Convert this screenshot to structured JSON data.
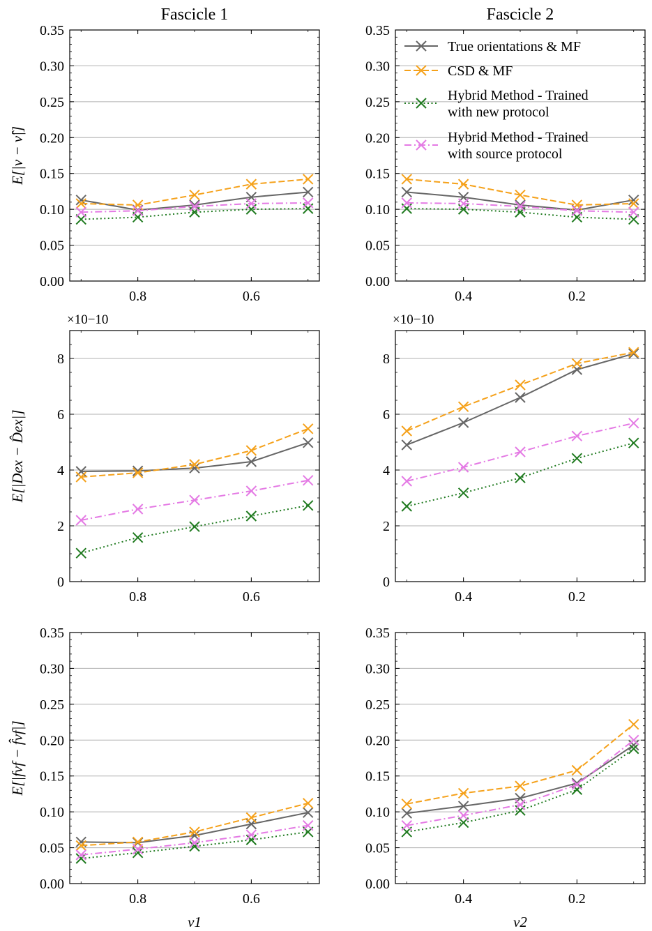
{
  "chart_data": {
    "type": "line",
    "column_titles": [
      "Fascicle 1",
      "Fascicle 2"
    ],
    "xlabels": [
      "ν1",
      "ν2"
    ],
    "legend": [
      {
        "name": "True orientations & MF",
        "color": "#666666",
        "dash": "solid"
      },
      {
        "name": "CSD & MF",
        "color": "#f5a11a",
        "dash": "dashed"
      },
      {
        "name": "Hybrid Method - Trained with new protocol",
        "color": "#1f7a1f",
        "dash": "dotted"
      },
      {
        "name": "Hybrid Method - Trained with source protocol",
        "color": "#e47ae4",
        "dash": "dashdot"
      }
    ],
    "legend_lines": [
      [
        "True orientations & MF"
      ],
      [
        "CSD & MF"
      ],
      [
        "Hybrid Method - Trained",
        "with new protocol"
      ],
      [
        "Hybrid Method - Trained",
        "with source protocol"
      ]
    ],
    "legend_location": "top-right of Fascicle 2 top panel",
    "panels": [
      {
        "id": "p11",
        "row": 0,
        "col": 0,
        "ylabel": "E[|ν − ν̂|]",
        "x": [
          0.9,
          0.8,
          0.7,
          0.6,
          0.5
        ],
        "xlim": [
          0.92,
          0.48
        ],
        "xticks": [
          0.8,
          0.6
        ],
        "xtick_labels": [
          "0.8",
          "0.6"
        ],
        "ylim": [
          0,
          0.35
        ],
        "yticks": [
          0,
          0.05,
          0.1,
          0.15,
          0.2,
          0.25,
          0.3,
          0.35
        ],
        "ytick_labels": [
          "0.00",
          "0.05",
          "0.10",
          "0.15",
          "0.20",
          "0.25",
          "0.30",
          "0.35"
        ],
        "series": [
          {
            "name": "True orientations & MF",
            "values": [
              0.113,
              0.099,
              0.106,
              0.117,
              0.124
            ]
          },
          {
            "name": "CSD & MF",
            "values": [
              0.108,
              0.106,
              0.12,
              0.135,
              0.142
            ]
          },
          {
            "name": "Hybrid Method - Trained with new protocol",
            "values": [
              0.086,
              0.089,
              0.096,
              0.1,
              0.101
            ]
          },
          {
            "name": "Hybrid Method - Trained with source protocol",
            "values": [
              0.096,
              0.098,
              0.104,
              0.108,
              0.109
            ]
          }
        ]
      },
      {
        "id": "p12",
        "row": 0,
        "col": 1,
        "ylabel": "",
        "x": [
          0.5,
          0.4,
          0.3,
          0.2,
          0.1
        ],
        "xlim": [
          0.52,
          0.08
        ],
        "xticks": [
          0.4,
          0.2
        ],
        "xtick_labels": [
          "0.4",
          "0.2"
        ],
        "ylim": [
          0,
          0.35
        ],
        "yticks": [
          0,
          0.05,
          0.1,
          0.15,
          0.2,
          0.25,
          0.3,
          0.35
        ],
        "ytick_labels": [
          "0.00",
          "0.05",
          "0.10",
          "0.15",
          "0.20",
          "0.25",
          "0.30",
          "0.35"
        ],
        "series": [
          {
            "name": "True orientations & MF",
            "values": [
              0.124,
              0.117,
              0.106,
              0.099,
              0.113
            ]
          },
          {
            "name": "CSD & MF",
            "values": [
              0.142,
              0.135,
              0.12,
              0.106,
              0.108
            ]
          },
          {
            "name": "Hybrid Method - Trained with new protocol",
            "values": [
              0.101,
              0.1,
              0.096,
              0.089,
              0.086
            ]
          },
          {
            "name": "Hybrid Method - Trained with source protocol",
            "values": [
              0.109,
              0.108,
              0.104,
              0.098,
              0.096
            ]
          }
        ]
      },
      {
        "id": "p21",
        "row": 1,
        "col": 0,
        "ylabel": "E[|Dex − D̂ex|]",
        "scale_label": "×10−10",
        "x": [
          0.9,
          0.8,
          0.7,
          0.6,
          0.5
        ],
        "xlim": [
          0.92,
          0.48
        ],
        "xticks": [
          0.8,
          0.6
        ],
        "xtick_labels": [
          "0.8",
          "0.6"
        ],
        "ylim": [
          0,
          9
        ],
        "yticks": [
          0,
          2,
          4,
          6,
          8
        ],
        "ytick_labels": [
          "0",
          "2",
          "4",
          "6",
          "8"
        ],
        "series": [
          {
            "name": "True orientations & MF",
            "values": [
              3.95,
              3.97,
              4.07,
              4.3,
              4.98
            ]
          },
          {
            "name": "CSD & MF",
            "values": [
              3.75,
              3.9,
              4.2,
              4.7,
              5.48
            ]
          },
          {
            "name": "Hybrid Method - Trained with new protocol",
            "values": [
              1.02,
              1.58,
              1.97,
              2.35,
              2.73
            ]
          },
          {
            "name": "Hybrid Method - Trained with source protocol",
            "values": [
              2.2,
              2.6,
              2.92,
              3.25,
              3.63
            ]
          }
        ]
      },
      {
        "id": "p22",
        "row": 1,
        "col": 1,
        "ylabel": "",
        "scale_label": "×10−10",
        "x": [
          0.5,
          0.4,
          0.3,
          0.2,
          0.1
        ],
        "xlim": [
          0.52,
          0.08
        ],
        "xticks": [
          0.4,
          0.2
        ],
        "xtick_labels": [
          "0.4",
          "0.2"
        ],
        "ylim": [
          0,
          9
        ],
        "yticks": [
          0,
          2,
          4,
          6,
          8
        ],
        "ytick_labels": [
          "0",
          "2",
          "4",
          "6",
          "8"
        ],
        "series": [
          {
            "name": "True orientations & MF",
            "values": [
              4.9,
              5.7,
              6.6,
              7.6,
              8.17
            ]
          },
          {
            "name": "CSD & MF",
            "values": [
              5.4,
              6.27,
              7.05,
              7.82,
              8.22
            ]
          },
          {
            "name": "Hybrid Method - Trained with new protocol",
            "values": [
              2.7,
              3.18,
              3.72,
              4.42,
              4.97
            ]
          },
          {
            "name": "Hybrid Method - Trained with source protocol",
            "values": [
              3.6,
              4.1,
              4.65,
              5.22,
              5.68
            ]
          }
        ]
      },
      {
        "id": "p31",
        "row": 2,
        "col": 0,
        "ylabel": "E[|fvf − f̂vf|]",
        "x": [
          0.9,
          0.8,
          0.7,
          0.6,
          0.5
        ],
        "xlim": [
          0.92,
          0.48
        ],
        "xticks": [
          0.8,
          0.6
        ],
        "xtick_labels": [
          "0.8",
          "0.6"
        ],
        "ylim": [
          0,
          0.35
        ],
        "yticks": [
          0,
          0.05,
          0.1,
          0.15,
          0.2,
          0.25,
          0.3,
          0.35
        ],
        "ytick_labels": [
          "0.00",
          "0.05",
          "0.10",
          "0.15",
          "0.20",
          "0.25",
          "0.30",
          "0.35"
        ],
        "series": [
          {
            "name": "True orientations & MF",
            "values": [
              0.058,
              0.057,
              0.067,
              0.083,
              0.099
            ]
          },
          {
            "name": "CSD & MF",
            "values": [
              0.053,
              0.058,
              0.072,
              0.092,
              0.112
            ]
          },
          {
            "name": "Hybrid Method - Trained with new protocol",
            "values": [
              0.035,
              0.043,
              0.052,
              0.061,
              0.072
            ]
          },
          {
            "name": "Hybrid Method - Trained with source protocol",
            "values": [
              0.04,
              0.048,
              0.057,
              0.068,
              0.081
            ]
          }
        ]
      },
      {
        "id": "p32",
        "row": 2,
        "col": 1,
        "ylabel": "",
        "x": [
          0.5,
          0.4,
          0.3,
          0.2,
          0.1
        ],
        "xlim": [
          0.52,
          0.08
        ],
        "xticks": [
          0.4,
          0.2
        ],
        "xtick_labels": [
          "0.4",
          "0.2"
        ],
        "ylim": [
          0,
          0.35
        ],
        "yticks": [
          0,
          0.05,
          0.1,
          0.15,
          0.2,
          0.25,
          0.3,
          0.35
        ],
        "ytick_labels": [
          "0.00",
          "0.05",
          "0.10",
          "0.15",
          "0.20",
          "0.25",
          "0.30",
          "0.35"
        ],
        "series": [
          {
            "name": "True orientations & MF",
            "values": [
              0.098,
              0.108,
              0.119,
              0.14,
              0.193
            ]
          },
          {
            "name": "CSD & MF",
            "values": [
              0.111,
              0.126,
              0.136,
              0.158,
              0.222
            ]
          },
          {
            "name": "Hybrid Method - Trained with new protocol",
            "values": [
              0.072,
              0.085,
              0.102,
              0.131,
              0.188
            ]
          },
          {
            "name": "Hybrid Method - Trained with source protocol",
            "values": [
              0.081,
              0.095,
              0.11,
              0.138,
              0.2
            ]
          }
        ]
      }
    ]
  }
}
